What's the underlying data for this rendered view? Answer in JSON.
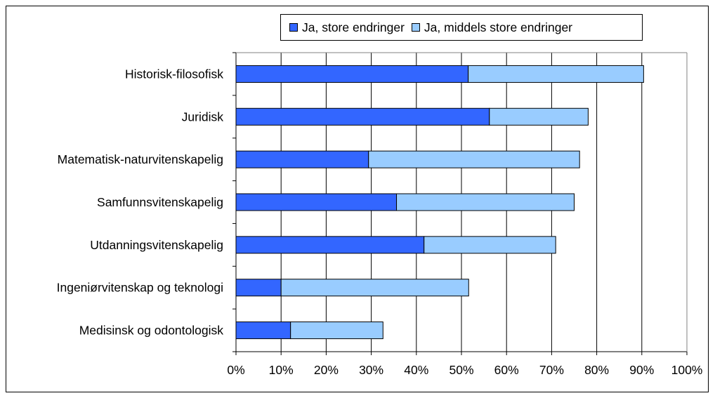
{
  "chart_data": {
    "type": "bar",
    "orientation": "horizontal",
    "stacked": true,
    "title": "",
    "xlabel": "",
    "ylabel": "",
    "xlim": [
      0,
      100
    ],
    "xticks": [
      "0%",
      "10%",
      "20%",
      "30%",
      "40%",
      "50%",
      "60%",
      "70%",
      "80%",
      "90%",
      "100%"
    ],
    "grid": "vertical",
    "legend_position": "top",
    "categories": [
      "Historisk-filosofisk",
      "Juridisk",
      "Matematisk-naturvitenskapelig",
      "Samfunnsvitenskapelig",
      "Utdanningsvitenskapelig",
      "Ingeniørvitenskap og teknologi",
      "Medisinsk og odontologisk"
    ],
    "series": [
      {
        "name": "Ja, store endringer",
        "color": "#3366ff",
        "values": [
          51.5,
          56.2,
          29.4,
          35.6,
          41.7,
          10.0,
          12.1
        ]
      },
      {
        "name": "Ja, middels store endringer",
        "color": "#99ccff",
        "values": [
          38.9,
          21.9,
          46.8,
          39.4,
          29.2,
          41.6,
          20.5
        ]
      }
    ]
  }
}
